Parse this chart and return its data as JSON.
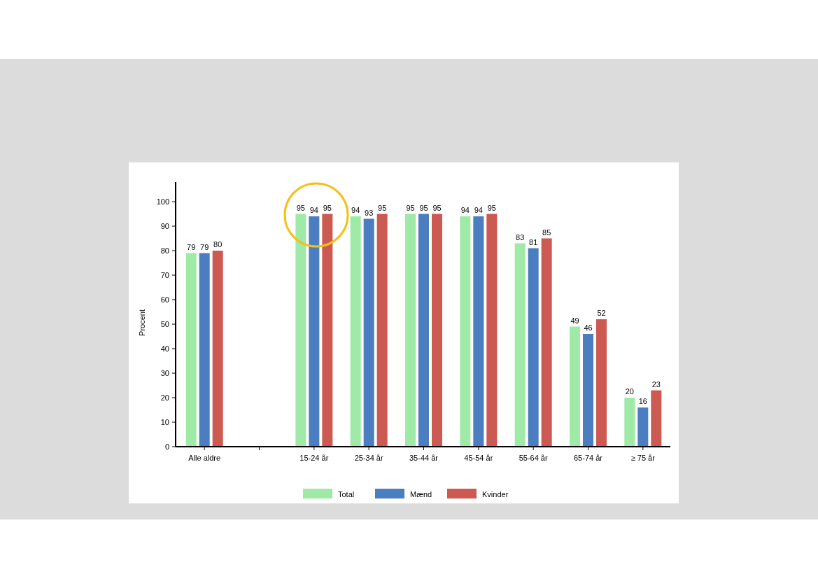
{
  "chart_data": {
    "type": "bar",
    "ylabel": "Procent",
    "categories": [
      "Alle aldre",
      null,
      "15-24 år",
      "25-34 år",
      "35-44 år",
      "45-54 år",
      "55-64 år",
      "65-74 år",
      "≥ 75 år"
    ],
    "series": [
      {
        "name": "Total",
        "color": "#9eeaa6",
        "values": [
          79,
          null,
          95,
          94,
          95,
          94,
          83,
          49,
          20
        ]
      },
      {
        "name": "Mænd",
        "color": "#4a7ec0",
        "values": [
          79,
          null,
          94,
          93,
          95,
          94,
          81,
          46,
          16
        ]
      },
      {
        "name": "Kvinder",
        "color": "#cc5a52",
        "values": [
          80,
          null,
          95,
          95,
          95,
          95,
          85,
          52,
          23
        ]
      }
    ],
    "ylim": [
      0,
      108
    ],
    "yticks": [
      0,
      10,
      20,
      30,
      40,
      50,
      60,
      70,
      80,
      90,
      100
    ],
    "data_labels": true,
    "legend": "bottom",
    "grid": false
  }
}
